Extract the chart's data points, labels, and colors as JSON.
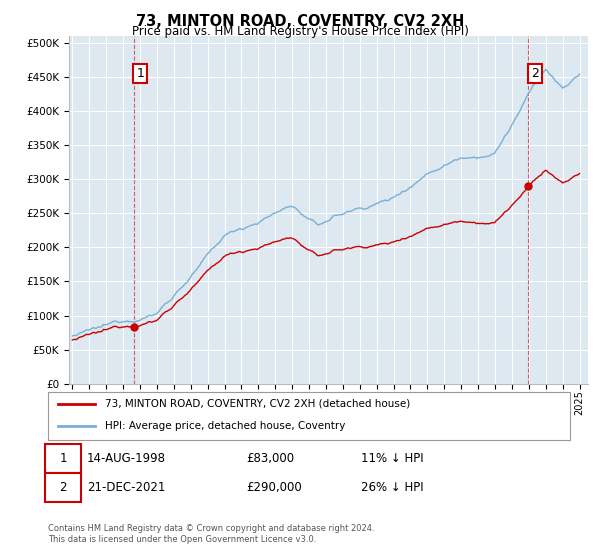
{
  "title": "73, MINTON ROAD, COVENTRY, CV2 2XH",
  "subtitle": "Price paid vs. HM Land Registry's House Price Index (HPI)",
  "hpi_color": "#7ab0d4",
  "price_color": "#cc0000",
  "bg_color": "#dde8f0",
  "annotation1_date": "14-AUG-1998",
  "annotation1_price": 83000,
  "annotation1_label": "11% ↓ HPI",
  "annotation2_date": "21-DEC-2021",
  "annotation2_price": 290000,
  "annotation2_label": "26% ↓ HPI",
  "sale1_x": 1998.62,
  "sale1_y": 83000,
  "sale2_x": 2021.97,
  "sale2_y": 290000,
  "yticks": [
    0,
    50000,
    100000,
    150000,
    200000,
    250000,
    300000,
    350000,
    400000,
    450000,
    500000
  ],
  "xlim": [
    1994.8,
    2025.5
  ],
  "ylim": [
    0,
    510000
  ],
  "footer1": "Contains HM Land Registry data © Crown copyright and database right 2024.",
  "footer2": "This data is licensed under the Open Government Licence v3.0.",
  "legend_label1": "73, MINTON ROAD, COVENTRY, CV2 2XH (detached house)",
  "legend_label2": "HPI: Average price, detached house, Coventry"
}
